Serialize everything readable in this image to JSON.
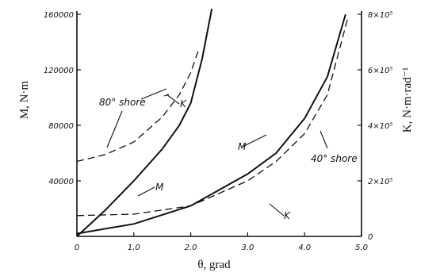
{
  "chart_data": {
    "type": "line",
    "title": "",
    "xlabel": "θ, grad",
    "ylabel": "M, N·m",
    "y2label": "K, N·m·rad⁻¹",
    "xlim": [
      0,
      5.0
    ],
    "ylim": [
      0,
      160000
    ],
    "y2lim": [
      0,
      800000
    ],
    "grid": false,
    "x_ticks": [
      0,
      1.0,
      2.0,
      3.0,
      4.0,
      5.0
    ],
    "x_tick_labels": [
      "0",
      "1.0",
      "2.0",
      "3.0",
      "4.0",
      "5.0"
    ],
    "y_ticks": [
      40000,
      80000,
      120000,
      160000
    ],
    "y_tick_labels": [
      "40000",
      "80000",
      "120000",
      "160000"
    ],
    "y2_ticks": [
      0,
      200000,
      400000,
      600000,
      800000
    ],
    "y2_tick_labels": [
      "0",
      "2×10⁵",
      "4×10⁵",
      "6×10⁵",
      "8×10⁵"
    ],
    "series": [
      {
        "axis": "left",
        "style": "solid",
        "points": [
          [
            0,
            0
          ],
          [
            0.5,
            19000
          ],
          [
            1.0,
            40000
          ],
          [
            1.5,
            63000
          ],
          [
            1.8,
            80000
          ],
          [
            2.0,
            96000
          ],
          [
            2.2,
            128000
          ],
          [
            2.37,
            164000
          ]
        ]
      },
      {
        "axis": "right",
        "style": "dashed",
        "points": [
          [
            0,
            270000
          ],
          [
            0.5,
            295000
          ],
          [
            1.0,
            340000
          ],
          [
            1.5,
            430000
          ],
          [
            1.8,
            510000
          ],
          [
            2.0,
            590000
          ],
          [
            2.1,
            650000
          ],
          [
            2.15,
            680000
          ]
        ]
      },
      {
        "axis": "left",
        "style": "solid",
        "points": [
          [
            0,
            2000
          ],
          [
            1.0,
            9000
          ],
          [
            2.0,
            22000
          ],
          [
            3.0,
            45000
          ],
          [
            3.5,
            60000
          ],
          [
            4.0,
            85000
          ],
          [
            4.4,
            115000
          ],
          [
            4.72,
            160000
          ]
        ]
      },
      {
        "axis": "right",
        "style": "dashed",
        "points": [
          [
            0,
            75000
          ],
          [
            1.0,
            80000
          ],
          [
            2.0,
            110000
          ],
          [
            3.0,
            200000
          ],
          [
            3.5,
            270000
          ],
          [
            4.0,
            370000
          ],
          [
            4.4,
            510000
          ],
          [
            4.75,
            780000
          ]
        ]
      }
    ],
    "annotations": [
      {
        "text": "80° shore"
      },
      {
        "text": "K"
      },
      {
        "text": "M"
      },
      {
        "text": "M"
      },
      {
        "text": "40° shore"
      },
      {
        "text": "K"
      }
    ]
  }
}
